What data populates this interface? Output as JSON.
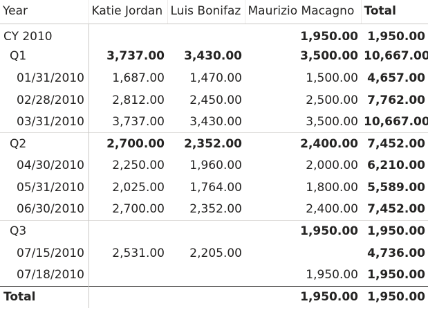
{
  "matrix": {
    "headers": {
      "row_header": "Year",
      "columns": [
        "Katie Jordan",
        "Luis Bonifaz",
        "Maurizio Macagno",
        "Total"
      ]
    },
    "rows": [
      {
        "label": "CY 2010",
        "level": "year",
        "values": [
          "",
          "",
          "1,950.00",
          "1,950.00"
        ]
      },
      {
        "label": "Q1",
        "level": "quarter",
        "values": [
          "3,737.00",
          "3,430.00",
          "3,500.00",
          "10,667.00"
        ]
      },
      {
        "label": "01/31/2010",
        "level": "date",
        "values": [
          "1,687.00",
          "1,470.00",
          "1,500.00",
          "4,657.00"
        ]
      },
      {
        "label": "02/28/2010",
        "level": "date",
        "values": [
          "2,812.00",
          "2,450.00",
          "2,500.00",
          "7,762.00"
        ]
      },
      {
        "label": "03/31/2010",
        "level": "date",
        "values": [
          "3,737.00",
          "3,430.00",
          "3,500.00",
          "10,667.00"
        ]
      },
      {
        "label": "Q2",
        "level": "quarter",
        "values": [
          "2,700.00",
          "2,352.00",
          "2,400.00",
          "7,452.00"
        ]
      },
      {
        "label": "04/30/2010",
        "level": "date",
        "values": [
          "2,250.00",
          "1,960.00",
          "2,000.00",
          "6,210.00"
        ]
      },
      {
        "label": "05/31/2010",
        "level": "date",
        "values": [
          "2,025.00",
          "1,764.00",
          "1,800.00",
          "5,589.00"
        ]
      },
      {
        "label": "06/30/2010",
        "level": "date",
        "values": [
          "2,700.00",
          "2,352.00",
          "2,400.00",
          "7,452.00"
        ]
      },
      {
        "label": "Q3",
        "level": "quarter",
        "values": [
          "",
          "",
          "1,950.00",
          "1,950.00"
        ]
      },
      {
        "label": "07/15/2010",
        "level": "date",
        "values": [
          "2,531.00",
          "2,205.00",
          "",
          "4,736.00"
        ]
      },
      {
        "label": "07/18/2010",
        "level": "date",
        "values": [
          "",
          "",
          "1,950.00",
          "1,950.00"
        ]
      }
    ],
    "grand_total": {
      "label": "Total",
      "values": [
        "",
        "",
        "1,950.00",
        "1,950.00"
      ]
    }
  }
}
